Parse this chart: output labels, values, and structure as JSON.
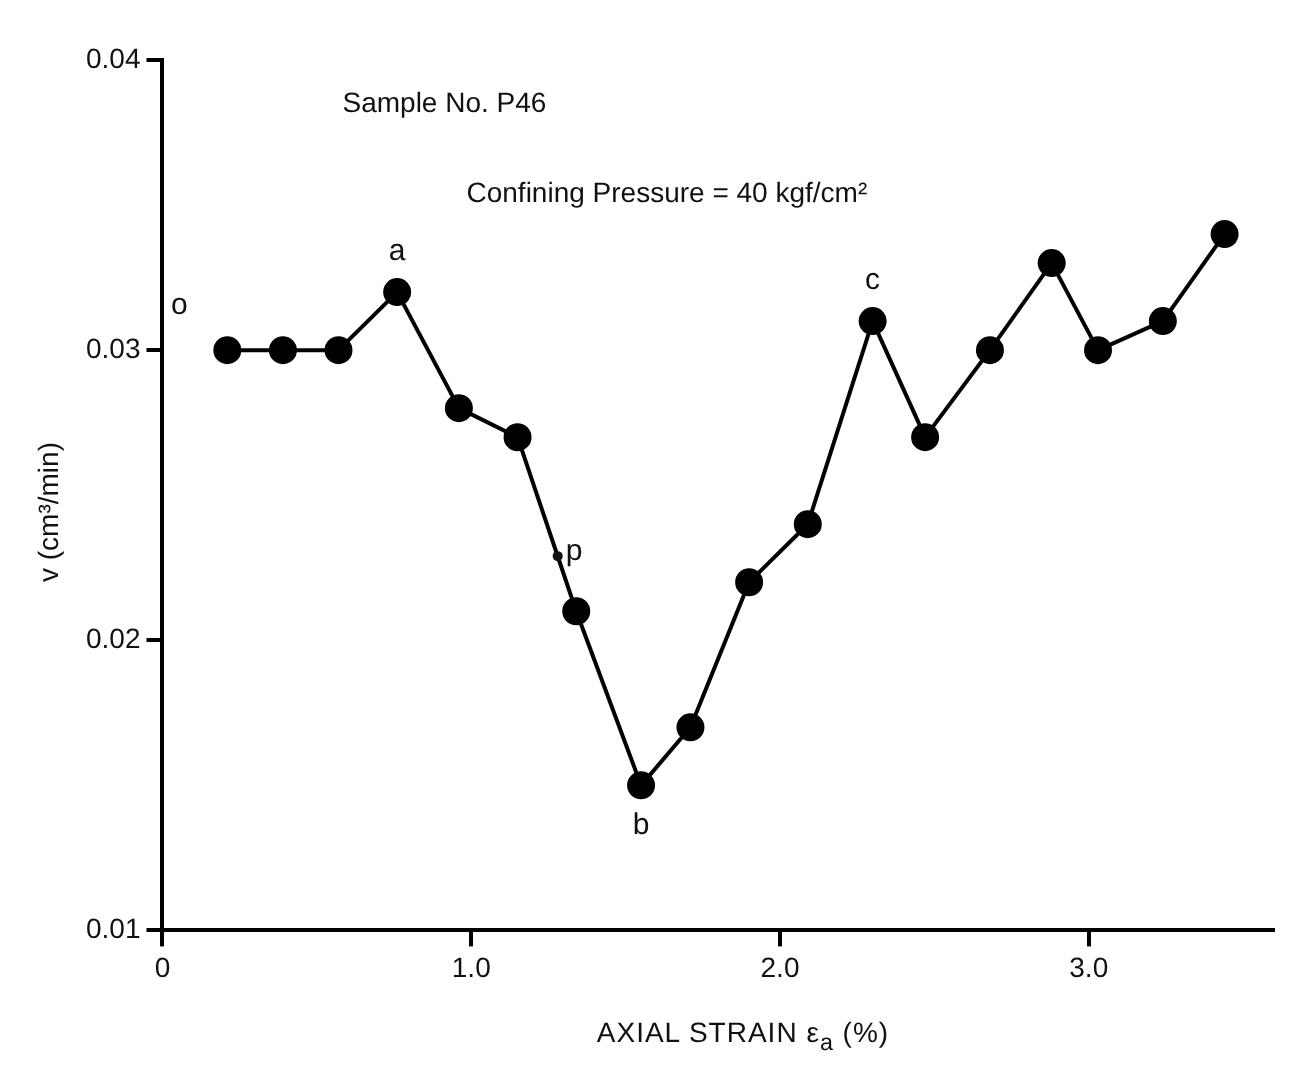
{
  "chart_data": {
    "type": "line",
    "xlabel": "AXIAL STRAIN ε$_{a}$ (%)",
    "ylabel": "v (cm³/min)",
    "annotations": [
      "Sample No. P46",
      "Confining Pressure = 40 kgf/cm²",
      {
        "text": "o",
        "x": 0.21,
        "y": 0.03
      },
      {
        "text": "a",
        "x": 0.76,
        "y": 0.032
      },
      {
        "text": "p",
        "x": 1.28,
        "y": 0.0229
      },
      {
        "text": "b",
        "x": 1.55,
        "y": 0.015
      },
      {
        "text": "c",
        "x": 2.3,
        "y": 0.031
      }
    ],
    "series": [
      {
        "color": "#000000",
        "x": [
          0.21,
          0.39,
          0.57,
          0.76,
          0.96,
          1.15,
          1.34,
          1.55,
          1.71,
          1.9,
          2.09,
          2.3,
          2.47,
          2.68,
          2.88,
          3.03,
          3.24,
          3.44
        ],
        "values": [
          0.03,
          0.03,
          0.03,
          0.032,
          0.028,
          0.027,
          0.021,
          0.015,
          0.017,
          0.022,
          0.024,
          0.031,
          0.027,
          0.03,
          0.033,
          0.03,
          0.031,
          0.034
        ]
      }
    ],
    "xlim": [
      0,
      3.6
    ],
    "xticks": [
      0,
      {
        "value": 1,
        "label": "1.0"
      },
      {
        "value": 2,
        "label": "2.0"
      },
      {
        "value": 3,
        "label": "3.0"
      }
    ],
    "ylim": [
      0.01,
      0.04
    ],
    "yticks": [
      0.01,
      0.02,
      0.03,
      0.04
    ],
    "grid": false,
    "legend": false,
    "marker": "circle",
    "line_style": "solid"
  }
}
